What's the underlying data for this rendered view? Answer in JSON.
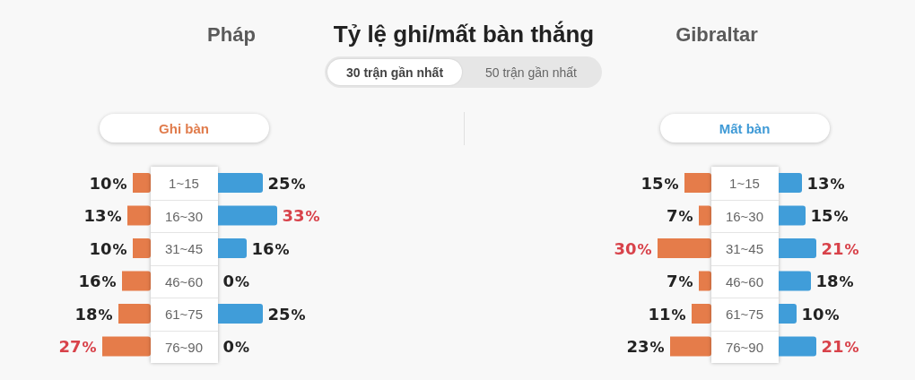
{
  "chart_data": [
    {
      "type": "bar",
      "orientation": "horizontal",
      "title": "Ghi bàn",
      "annotations": [
        "Pháp",
        "Tỷ lệ ghi/mất bàn thắng",
        "Gibraltar",
        "30 trận gần nhất",
        "50 trận gần nhất"
      ],
      "categories": [
        "1~15",
        "16~30",
        "31~45",
        "46~60",
        "61~75",
        "76~90"
      ],
      "tick_labels": "y",
      "series": [
        {
          "color": "#e57c4a",
          "values": [
            10,
            13,
            10,
            16,
            18,
            27
          ],
          "value_labels": [
            "10%",
            "13%",
            "10%",
            "16%",
            "18%",
            "27%"
          ]
        }
      ]
    },
    {
      "type": "bar",
      "orientation": "horizontal",
      "categories": [
        null,
        null,
        null,
        null,
        null,
        null
      ],
      "tick_labels": false,
      "series": [
        {
          "color": "#409dd9",
          "values": [
            25,
            33,
            16,
            0,
            25,
            0
          ],
          "value_labels": [
            "25%",
            "33%",
            "16%",
            "0%",
            "25%",
            "0%"
          ]
        }
      ]
    },
    {
      "type": "bar",
      "orientation": "horizontal",
      "title": "Mất bàn",
      "categories": [
        "1~15",
        "16~30",
        "31~45",
        "46~60",
        "61~75",
        "76~90"
      ],
      "tick_labels": "y",
      "series": [
        {
          "color": "#e57c4a",
          "values": [
            15,
            7,
            30,
            7,
            11,
            23
          ],
          "value_labels": [
            "15%",
            "7%",
            "30%",
            "7%",
            "11%",
            "23%"
          ]
        }
      ]
    },
    {
      "type": "bar",
      "orientation": "horizontal",
      "categories": [
        null,
        null,
        null,
        null,
        null,
        null
      ],
      "tick_labels": false,
      "series": [
        {
          "color": "#409dd9",
          "values": [
            13,
            15,
            21,
            18,
            10,
            21
          ],
          "value_labels": [
            "13%",
            "15%",
            "21%",
            "18%",
            "10%",
            "21%"
          ]
        }
      ]
    }
  ]
}
